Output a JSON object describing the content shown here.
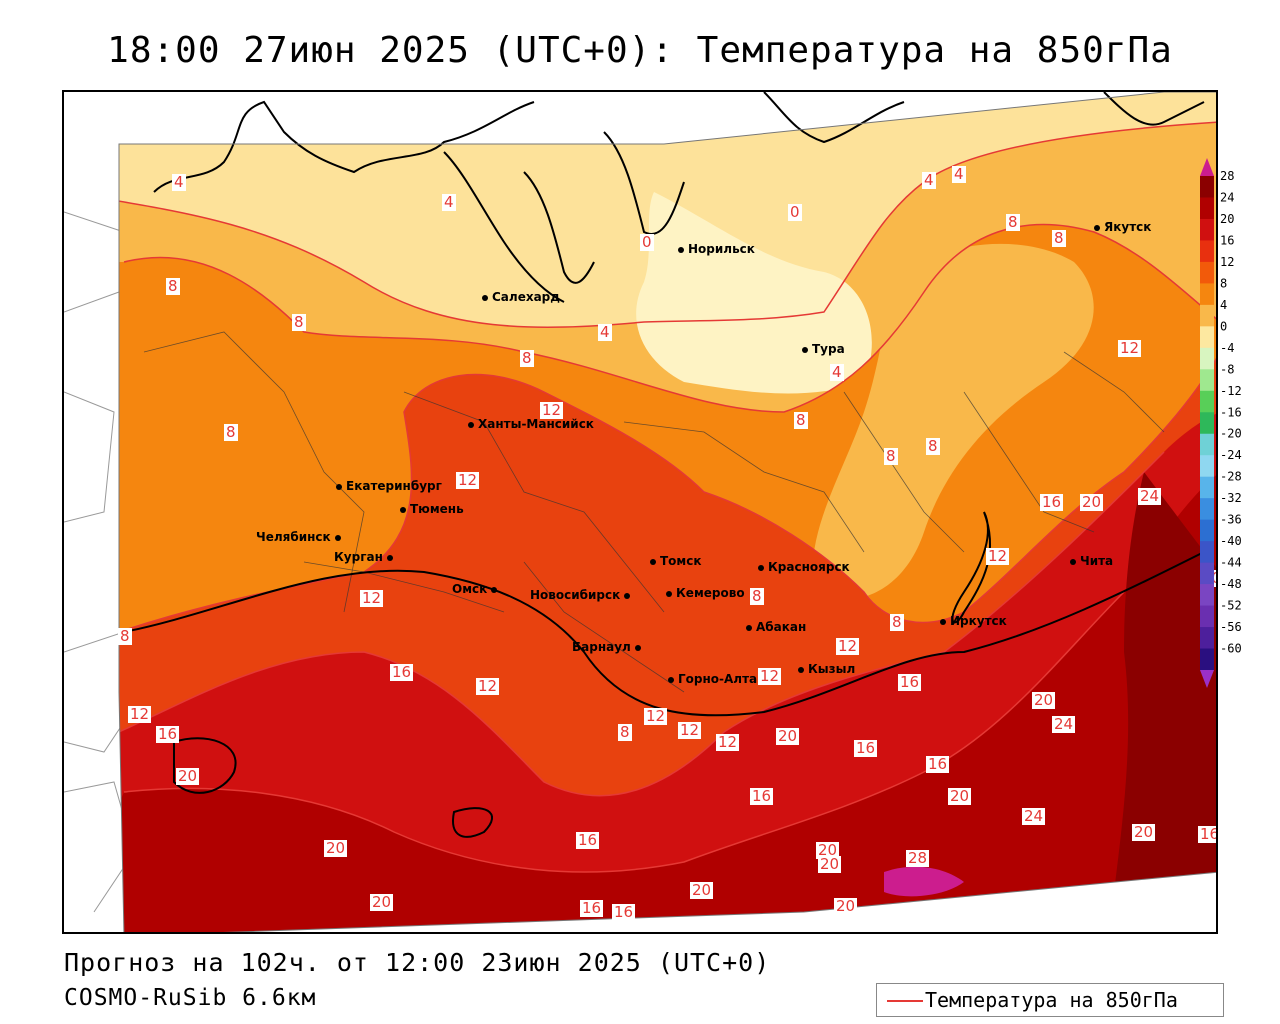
{
  "title": "18:00 27июн 2025 (UTC+0): Температура на 850гПа",
  "footer": {
    "forecast": "Прогноз на 102ч. от 12:00 23июн 2025 (UTC+0)",
    "model": "COSMO-RuSib 6.6км"
  },
  "legend": {
    "label": "Температура на 850гПа",
    "line_color": "#e53935"
  },
  "colorbar": {
    "ticks": [
      "28",
      "24",
      "20",
      "16",
      "12",
      "8",
      "4",
      "0",
      "-4",
      "-8",
      "-12",
      "-16",
      "-20",
      "-24",
      "-28",
      "-32",
      "-36",
      "-40",
      "-44",
      "-48",
      "-52",
      "-56",
      "-60"
    ],
    "colors": [
      "#8b0000",
      "#b00000",
      "#d01010",
      "#e8300f",
      "#f25a0a",
      "#f5860f",
      "#f9b84a",
      "#fde8a0",
      "#d8f5c0",
      "#9fe88f",
      "#58cf58",
      "#2eb85a",
      "#6fd1d6",
      "#8fd7f0",
      "#58b4ea",
      "#3a8ee0",
      "#2c6fd2",
      "#3b55c8",
      "#5a4bc4",
      "#7a45c2",
      "#6a2fb0",
      "#4d1f9c",
      "#2a0f80"
    ],
    "top_color": "#cc1d8e",
    "bottom_color": "#9b30c8"
  },
  "cities": [
    {
      "name": "Норильск"
    },
    {
      "name": "Якутск"
    },
    {
      "name": "Салехард"
    },
    {
      "name": "Тура"
    },
    {
      "name": "Ханты-Мансийск"
    },
    {
      "name": "Екатеринбург"
    },
    {
      "name": "Тюмень"
    },
    {
      "name": "Челябинск"
    },
    {
      "name": "Курган"
    },
    {
      "name": "Омск"
    },
    {
      "name": "Новосибирск"
    },
    {
      "name": "Томск"
    },
    {
      "name": "Кемерово"
    },
    {
      "name": "Красноярск"
    },
    {
      "name": "Барнаул"
    },
    {
      "name": "Абакан"
    },
    {
      "name": "Горно-Алтайск"
    },
    {
      "name": "Кызыл"
    },
    {
      "name": "Иркутск"
    },
    {
      "name": "Чита"
    }
  ],
  "contour_labels": [
    "4",
    "4",
    "4",
    "4",
    "0",
    "0",
    "8",
    "8",
    "8",
    "8",
    "8",
    "8",
    "4",
    "4",
    "8",
    "12",
    "12",
    "8",
    "8",
    "8",
    "8",
    "16",
    "20",
    "24",
    "12",
    "12",
    "12",
    "12",
    "12",
    "12",
    "16",
    "16",
    "16",
    "20",
    "20",
    "16",
    "16",
    "20",
    "20",
    "24",
    "16",
    "16",
    "16",
    "20",
    "24",
    "20",
    "16",
    "20",
    "20",
    "20",
    "16",
    "20",
    "28",
    "20",
    "12",
    "12",
    "12",
    "8",
    "8",
    "12",
    "20",
    "8"
  ]
}
